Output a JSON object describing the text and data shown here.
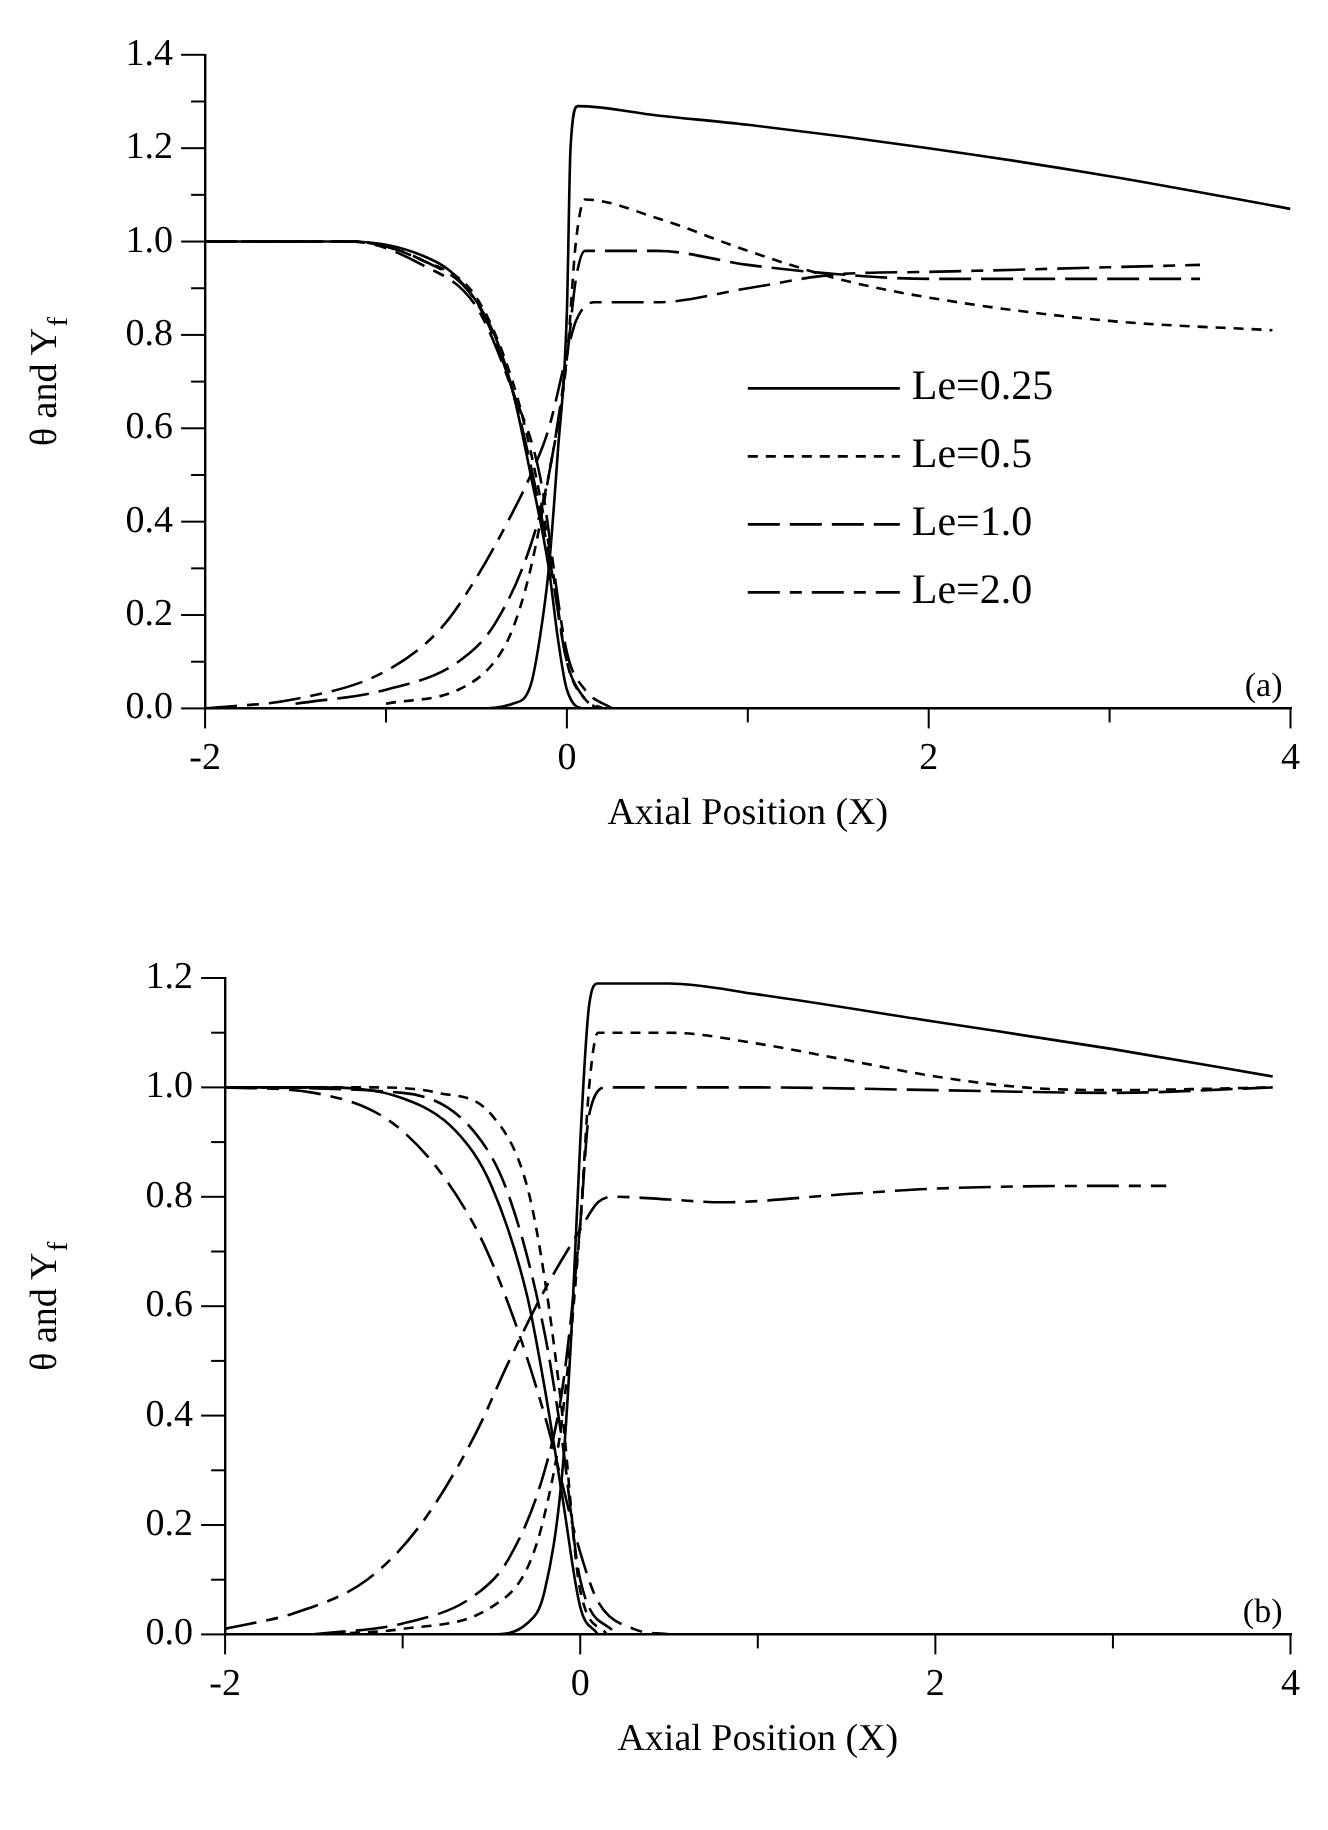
{
  "chart_data": [
    {
      "type": "line",
      "xlabel": "Axial Position (X)",
      "ylabel": "θ and Y$_{f}$",
      "annotations": [
        "(a)"
      ],
      "legend": "bottom right",
      "grid": false,
      "marker": "none",
      "xlim": [
        -2,
        4
      ],
      "xticks": [
        -2,
        {
          "value": -1,
          "label": null
        },
        0,
        {
          "value": 1,
          "label": null
        },
        2,
        {
          "value": 3,
          "label": null
        },
        4
      ],
      "ylim": [
        0,
        1.4
      ],
      "yticks": [
        {
          "value": 0,
          "label": "0.0"
        },
        {
          "value": 0.1,
          "label": null
        },
        {
          "value": 0.2,
          "label": "0.2"
        },
        {
          "value": 0.3,
          "label": null
        },
        {
          "value": 0.4,
          "label": "0.4"
        },
        {
          "value": 0.5,
          "label": null
        },
        {
          "value": 0.6,
          "label": "0.6"
        },
        {
          "value": 0.7,
          "label": null
        },
        {
          "value": 0.8,
          "label": "0.8"
        },
        {
          "value": 0.9,
          "label": null
        },
        {
          "value": 1,
          "label": "1.0"
        },
        {
          "value": 1.1,
          "label": null
        },
        {
          "value": 1.2,
          "label": "1.2"
        },
        {
          "value": 1.3,
          "label": null
        },
        {
          "value": 1.4,
          "label": "1.4"
        }
      ],
      "series": [
        {
          "name": "Le=0.25",
          "color": "#000000",
          "line_style": "solid",
          "x": [
            -2,
            -0.5,
            -0.3,
            -0.2,
            -0.15,
            -0.1,
            -0.05,
            0,
            0.02,
            0.06,
            0.5,
            1,
            2,
            3,
            4
          ],
          "values": [
            0,
            0,
            0.01,
            0.05,
            0.15,
            0.3,
            0.55,
            0.85,
            1.2,
            1.29,
            1.27,
            1.25,
            1.2,
            1.14,
            1.07
          ]
        },
        {
          "name": "Le=0.5",
          "color": "#000000",
          "line_style": "dashed",
          "x": [
            -1,
            -0.6,
            -0.4,
            -0.3,
            -0.2,
            -0.1,
            0,
            0.05,
            0.1,
            0.5,
            1,
            1.5,
            2,
            3,
            3.9
          ],
          "values": [
            0.01,
            0.04,
            0.1,
            0.17,
            0.3,
            0.5,
            0.75,
            1,
            1.09,
            1.05,
            0.98,
            0.92,
            0.88,
            0.83,
            0.81
          ]
        },
        {
          "name": "Le=1.0",
          "color": "#000000",
          "line_style": "dashed",
          "x": [
            -1.5,
            -1,
            -0.6,
            -0.4,
            -0.2,
            -0.1,
            0,
            0.05,
            0.1,
            0.5,
            1,
            1.5,
            2,
            3,
            3.5
          ],
          "values": [
            0.01,
            0.04,
            0.1,
            0.18,
            0.35,
            0.5,
            0.75,
            0.92,
            0.98,
            0.98,
            0.95,
            0.93,
            0.92,
            0.92,
            0.92
          ]
        },
        {
          "name": "Le=2.0",
          "color": "#000000",
          "line_style": "dashed",
          "x": [
            -2,
            -1.5,
            -1,
            -0.7,
            -0.5,
            -0.3,
            -0.2,
            -0.1,
            0,
            0.05,
            0.15,
            0.5,
            1,
            1.5,
            2,
            3,
            3.5
          ],
          "values": [
            0,
            0.02,
            0.08,
            0.17,
            0.28,
            0.42,
            0.5,
            0.6,
            0.76,
            0.83,
            0.87,
            0.87,
            0.9,
            0.93,
            0.935,
            0.945,
            0.95
          ]
        },
        {
          "color": "#000000",
          "line_style": "solid",
          "x": [
            -2,
            -1.2,
            -0.8,
            -0.6,
            -0.4,
            -0.3,
            -0.2,
            -0.1,
            -0.05,
            0,
            0.1,
            0.3
          ],
          "values": [
            1,
            1,
            0.97,
            0.92,
            0.8,
            0.68,
            0.5,
            0.3,
            0.15,
            0.04,
            0,
            0
          ]
        },
        {
          "color": "#000000",
          "line_style": "dashed",
          "x": [
            -2,
            -1.2,
            -0.8,
            -0.5,
            -0.3,
            -0.2,
            -0.1,
            0,
            0.1,
            0.2
          ],
          "values": [
            1,
            1,
            0.96,
            0.88,
            0.7,
            0.55,
            0.35,
            0.1,
            0.02,
            0
          ]
        },
        {
          "color": "#000000",
          "line_style": "dashed",
          "x": [
            -2,
            -1.2,
            -0.8,
            -0.5,
            -0.3,
            -0.2,
            -0.1,
            0,
            0.1,
            0.17
          ],
          "values": [
            1,
            1,
            0.96,
            0.87,
            0.68,
            0.52,
            0.33,
            0.1,
            0.02,
            0
          ]
        },
        {
          "color": "#000000",
          "line_style": "dashed",
          "x": [
            -2,
            -1.2,
            -0.8,
            -0.5,
            -0.3,
            -0.15,
            0,
            0.1,
            0.25
          ],
          "values": [
            1,
            1,
            0.95,
            0.86,
            0.68,
            0.5,
            0.12,
            0.04,
            0
          ]
        }
      ]
    },
    {
      "type": "line",
      "xlabel": "Axial Position (X)",
      "ylabel": "θ and Y$_{f}$",
      "annotations": [
        "(b)"
      ],
      "grid": false,
      "marker": "none",
      "xlim": [
        -2,
        4
      ],
      "xticks": [
        -2,
        {
          "value": -1,
          "label": null
        },
        0,
        {
          "value": 1,
          "label": null
        },
        2,
        {
          "value": 3,
          "label": null
        },
        4
      ],
      "ylim": [
        0,
        1.2
      ],
      "yticks": [
        {
          "value": 0,
          "label": "0.0"
        },
        {
          "value": 0.1,
          "label": null
        },
        {
          "value": 0.2,
          "label": "0.2"
        },
        {
          "value": 0.3,
          "label": null
        },
        {
          "value": 0.4,
          "label": "0.4"
        },
        {
          "value": 0.5,
          "label": null
        },
        {
          "value": 0.6,
          "label": "0.6"
        },
        {
          "value": 0.7,
          "label": null
        },
        {
          "value": 0.8,
          "label": "0.8"
        },
        {
          "value": 0.9,
          "label": null
        },
        {
          "value": 1,
          "label": "1.0"
        },
        {
          "value": 1.1,
          "label": null
        },
        {
          "value": 1.2,
          "label": "1.2"
        }
      ],
      "series": [
        {
          "color": "#000000",
          "line_style": "solid",
          "x": [
            -2,
            -0.5,
            -0.3,
            -0.2,
            -0.1,
            -0.05,
            0,
            0.05,
            0.1,
            0.5,
            1,
            2,
            3,
            3.9
          ],
          "values": [
            0,
            0,
            0.02,
            0.08,
            0.3,
            0.55,
            0.9,
            1.15,
            1.19,
            1.19,
            1.17,
            1.12,
            1.07,
            1.02
          ]
        },
        {
          "color": "#000000",
          "line_style": "dashed",
          "x": [
            -1.5,
            -1,
            -0.5,
            -0.3,
            -0.2,
            -0.1,
            0,
            0.05,
            0.1,
            0.5,
            1,
            1.5,
            2,
            2.5,
            3,
            3.9
          ],
          "values": [
            0,
            0.01,
            0.05,
            0.12,
            0.22,
            0.4,
            0.75,
            1,
            1.1,
            1.1,
            1.08,
            1.05,
            1.02,
            1,
            0.995,
            1
          ]
        },
        {
          "color": "#000000",
          "line_style": "dashed",
          "x": [
            -1.5,
            -1,
            -0.6,
            -0.4,
            -0.2,
            -0.1,
            0,
            0.05,
            0.15,
            1,
            2,
            3,
            3.9
          ],
          "values": [
            0,
            0.02,
            0.07,
            0.14,
            0.3,
            0.45,
            0.75,
            0.95,
            1,
            1,
            0.995,
            0.99,
            1
          ]
        },
        {
          "color": "#000000",
          "line_style": "dashed",
          "x": [
            -2,
            -1.6,
            -1.2,
            -0.9,
            -0.6,
            -0.4,
            -0.2,
            0,
            0.1,
            0.2,
            0.5,
            0.8,
            1.5,
            2,
            3,
            3.3
          ],
          "values": [
            0.01,
            0.04,
            0.1,
            0.2,
            0.36,
            0.5,
            0.63,
            0.74,
            0.79,
            0.8,
            0.795,
            0.79,
            0.805,
            0.815,
            0.82,
            0.82
          ]
        },
        {
          "color": "#000000",
          "line_style": "solid",
          "x": [
            -2,
            -1.5,
            -1,
            -0.7,
            -0.5,
            -0.3,
            -0.2,
            -0.1,
            0,
            0.1
          ],
          "values": [
            1,
            1,
            0.98,
            0.92,
            0.82,
            0.62,
            0.45,
            0.25,
            0.05,
            0
          ]
        },
        {
          "color": "#000000",
          "line_style": "dashed",
          "x": [
            -2,
            -1.2,
            -0.8,
            -0.5,
            -0.3,
            -0.2,
            -0.1,
            0,
            0.15
          ],
          "values": [
            1,
            1,
            0.99,
            0.95,
            0.82,
            0.65,
            0.4,
            0.08,
            0
          ]
        },
        {
          "color": "#000000",
          "line_style": "dashed",
          "x": [
            -2,
            -1,
            -0.6,
            -0.4,
            -0.2,
            -0.1,
            0,
            0.2
          ],
          "values": [
            1,
            0.99,
            0.92,
            0.8,
            0.55,
            0.35,
            0.1,
            0
          ]
        },
        {
          "color": "#000000",
          "line_style": "dashed",
          "x": [
            -2,
            -1.5,
            -1,
            -0.6,
            -0.4,
            -0.2,
            0,
            0.1,
            0.3,
            0.5
          ],
          "values": [
            1,
            0.99,
            0.92,
            0.75,
            0.6,
            0.4,
            0.15,
            0.06,
            0.01,
            0
          ]
        }
      ]
    }
  ]
}
